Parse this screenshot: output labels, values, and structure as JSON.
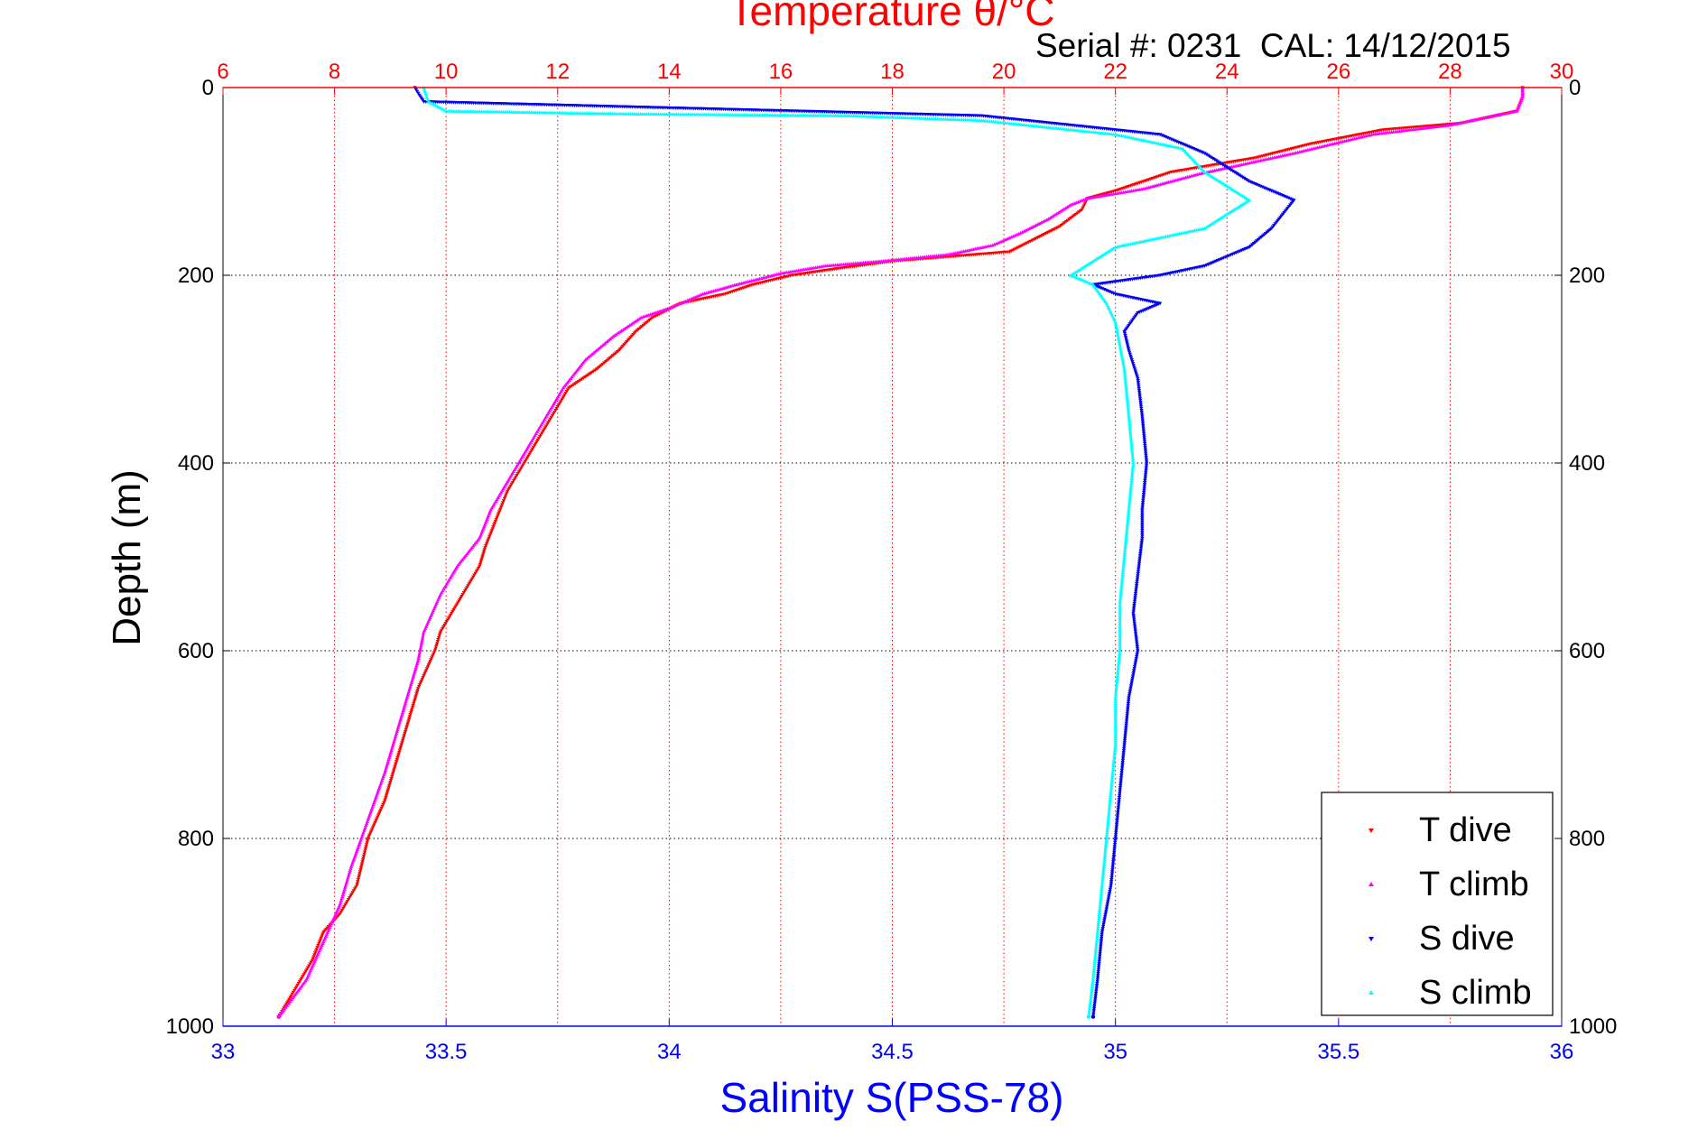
{
  "chart_data": {
    "type": "scatter",
    "title": "Temperature θ/°C",
    "subtitle": "Serial #: 0231  CAL: 14/12/2015",
    "ylabel": "Depth (m)",
    "xlabel_bottom": "Salinity S(PSS-78)",
    "x_top": {
      "label": "Temperature θ/°C",
      "range": [
        6,
        30
      ],
      "ticks": [
        "6",
        "8",
        "10",
        "12",
        "14",
        "16",
        "18",
        "20",
        "22",
        "24",
        "26",
        "28",
        "30"
      ]
    },
    "x_bottom": {
      "label": "Salinity S(PSS-78)",
      "range": [
        33,
        36
      ],
      "ticks": [
        "33",
        "33.5",
        "34",
        "34.5",
        "35",
        "35.5",
        "36"
      ]
    },
    "y": {
      "range": [
        0,
        1000
      ],
      "reversed": true,
      "ticks": [
        "0",
        "200",
        "400",
        "600",
        "800",
        "1000"
      ]
    },
    "grid": true,
    "legend_position": "bottom-right",
    "colors": {
      "t_dive": "#ff0000",
      "t_climb": "#ff00ff",
      "s_dive": "#0000ee",
      "s_climb": "#00ffff",
      "top_axis": "#ff0000",
      "bottom_axis": "#0000ff"
    },
    "series": [
      {
        "name": "T dive",
        "axis": "temperature",
        "marker": "triangle-down",
        "points": [
          [
            29.3,
            0
          ],
          [
            29.3,
            10
          ],
          [
            29.2,
            25
          ],
          [
            28.2,
            38
          ],
          [
            26.8,
            45
          ],
          [
            25.5,
            60
          ],
          [
            24.5,
            75
          ],
          [
            23.0,
            90
          ],
          [
            22.5,
            100
          ],
          [
            22.0,
            110
          ],
          [
            21.5,
            118
          ],
          [
            21.4,
            130
          ],
          [
            21.0,
            148
          ],
          [
            20.6,
            160
          ],
          [
            20.1,
            175
          ],
          [
            18.0,
            185
          ],
          [
            17.0,
            193
          ],
          [
            16.2,
            200
          ],
          [
            15.5,
            210
          ],
          [
            15.0,
            220
          ],
          [
            14.2,
            230
          ],
          [
            13.7,
            245
          ],
          [
            13.4,
            260
          ],
          [
            13.1,
            280
          ],
          [
            12.7,
            300
          ],
          [
            12.2,
            320
          ],
          [
            12.0,
            340
          ],
          [
            11.7,
            370
          ],
          [
            11.4,
            400
          ],
          [
            11.1,
            430
          ],
          [
            10.9,
            460
          ],
          [
            10.7,
            490
          ],
          [
            10.6,
            510
          ],
          [
            10.3,
            540
          ],
          [
            9.9,
            580
          ],
          [
            9.8,
            600
          ],
          [
            9.5,
            640
          ],
          [
            9.3,
            680
          ],
          [
            9.1,
            720
          ],
          [
            8.9,
            760
          ],
          [
            8.6,
            800
          ],
          [
            8.4,
            850
          ],
          [
            8.1,
            880
          ],
          [
            7.8,
            900
          ],
          [
            7.6,
            930
          ],
          [
            7.3,
            960
          ],
          [
            7.0,
            990
          ]
        ]
      },
      {
        "name": "T climb",
        "axis": "temperature",
        "marker": "triangle-up",
        "points": [
          [
            29.3,
            0
          ],
          [
            29.3,
            10
          ],
          [
            29.2,
            25
          ],
          [
            28.0,
            40
          ],
          [
            26.6,
            50
          ],
          [
            25.2,
            70
          ],
          [
            23.5,
            92
          ],
          [
            22.5,
            108
          ],
          [
            21.5,
            118
          ],
          [
            21.2,
            125
          ],
          [
            20.8,
            140
          ],
          [
            20.3,
            155
          ],
          [
            19.8,
            168
          ],
          [
            19.0,
            178
          ],
          [
            17.8,
            185
          ],
          [
            16.8,
            190
          ],
          [
            16.0,
            198
          ],
          [
            15.2,
            210
          ],
          [
            14.6,
            220
          ],
          [
            14.0,
            235
          ],
          [
            13.5,
            245
          ],
          [
            13.0,
            265
          ],
          [
            12.5,
            290
          ],
          [
            12.1,
            320
          ],
          [
            11.8,
            350
          ],
          [
            11.5,
            380
          ],
          [
            11.1,
            420
          ],
          [
            10.8,
            450
          ],
          [
            10.6,
            480
          ],
          [
            10.2,
            510
          ],
          [
            9.9,
            540
          ],
          [
            9.6,
            580
          ],
          [
            9.5,
            610
          ],
          [
            9.3,
            650
          ],
          [
            9.1,
            690
          ],
          [
            8.9,
            730
          ],
          [
            8.6,
            780
          ],
          [
            8.3,
            830
          ],
          [
            8.1,
            870
          ],
          [
            7.8,
            910
          ],
          [
            7.5,
            950
          ],
          [
            7.0,
            990
          ]
        ]
      },
      {
        "name": "S dive",
        "axis": "salinity",
        "marker": "triangle-down",
        "points": [
          [
            33.43,
            0
          ],
          [
            33.44,
            8
          ],
          [
            33.45,
            15
          ],
          [
            34.7,
            30
          ],
          [
            35.1,
            50
          ],
          [
            35.2,
            70
          ],
          [
            35.3,
            100
          ],
          [
            35.4,
            120
          ],
          [
            35.35,
            150
          ],
          [
            35.3,
            170
          ],
          [
            35.2,
            190
          ],
          [
            35.1,
            200
          ],
          [
            34.95,
            210
          ],
          [
            35.0,
            220
          ],
          [
            35.1,
            230
          ],
          [
            35.05,
            240
          ],
          [
            35.02,
            260
          ],
          [
            35.03,
            280
          ],
          [
            35.05,
            310
          ],
          [
            35.06,
            350
          ],
          [
            35.07,
            400
          ],
          [
            35.06,
            450
          ],
          [
            35.06,
            480
          ],
          [
            35.05,
            520
          ],
          [
            35.04,
            560
          ],
          [
            35.05,
            600
          ],
          [
            35.03,
            650
          ],
          [
            35.02,
            700
          ],
          [
            35.01,
            750
          ],
          [
            35.0,
            800
          ],
          [
            34.99,
            850
          ],
          [
            34.97,
            900
          ],
          [
            34.96,
            950
          ],
          [
            34.95,
            990
          ]
        ]
      },
      {
        "name": "S climb",
        "axis": "salinity",
        "marker": "triangle-up",
        "points": [
          [
            33.45,
            0
          ],
          [
            33.46,
            15
          ],
          [
            33.5,
            25
          ],
          [
            33.9,
            28
          ],
          [
            34.4,
            30
          ],
          [
            34.7,
            35
          ],
          [
            35.0,
            50
          ],
          [
            35.15,
            65
          ],
          [
            35.2,
            90
          ],
          [
            35.3,
            120
          ],
          [
            35.2,
            150
          ],
          [
            35.0,
            170
          ],
          [
            34.9,
            200
          ],
          [
            34.95,
            210
          ],
          [
            34.98,
            230
          ],
          [
            35.0,
            250
          ],
          [
            35.02,
            300
          ],
          [
            35.03,
            350
          ],
          [
            35.04,
            400
          ],
          [
            35.03,
            450
          ],
          [
            35.02,
            500
          ],
          [
            35.01,
            550
          ],
          [
            35.01,
            600
          ],
          [
            35.0,
            650
          ],
          [
            35.0,
            700
          ],
          [
            34.99,
            750
          ],
          [
            34.98,
            800
          ],
          [
            34.97,
            850
          ],
          [
            34.96,
            900
          ],
          [
            34.95,
            950
          ],
          [
            34.94,
            990
          ]
        ]
      }
    ]
  }
}
